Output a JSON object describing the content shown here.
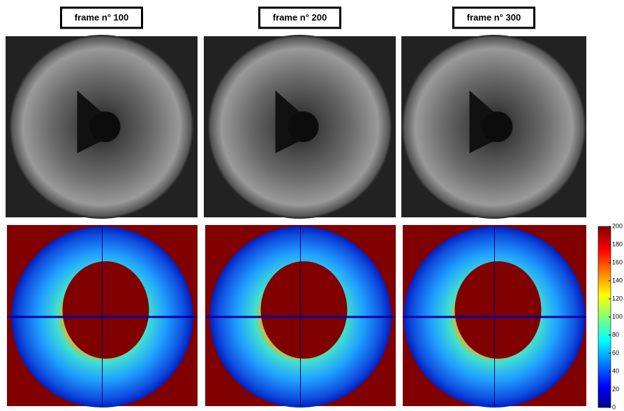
{
  "frames": [
    {
      "label": "frame n° 100"
    },
    {
      "label": "frame n° 200"
    },
    {
      "label": "frame n° 300"
    }
  ],
  "colorbar": {
    "lim": [
      0,
      200
    ],
    "ticks": [
      0,
      20,
      40,
      60,
      80,
      100,
      120,
      140,
      160,
      180,
      200
    ]
  }
}
